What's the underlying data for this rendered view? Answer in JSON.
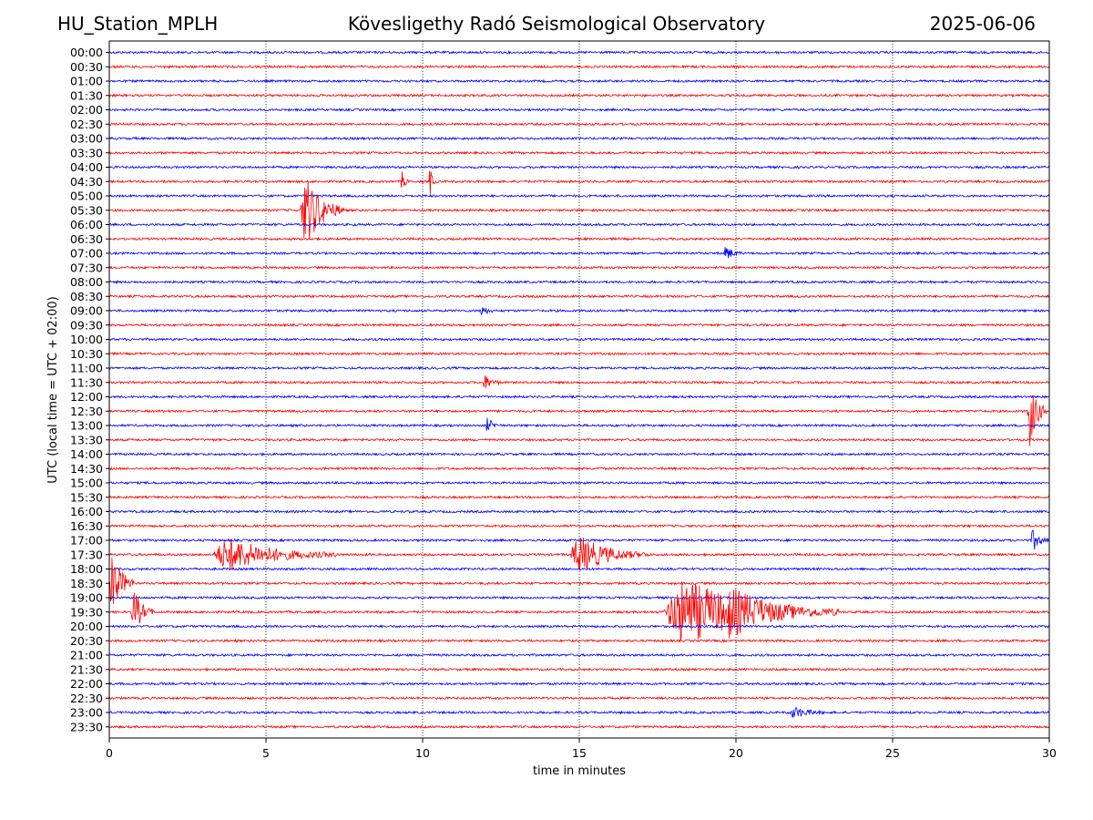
{
  "header": {
    "station": "HU_Station_MPLH",
    "observatory": "Kövesligethy Radó Seismological Observatory",
    "date": "2025-06-06"
  },
  "colors": {
    "even_trace": "#0000ff",
    "odd_trace": "#ff0000",
    "axis": "#000000",
    "grid": "#000000"
  },
  "chart_data": {
    "type": "line",
    "title": "Kövesligethy Radó Seismological Observatory",
    "xlabel": "time in minutes",
    "ylabel": "UTC (local time = UTC + 02:00)",
    "xlim": [
      0,
      30
    ],
    "x_ticks": [
      "0",
      "5",
      "10",
      "15",
      "20",
      "25",
      "30"
    ],
    "x_tick_values": [
      0,
      5,
      10,
      15,
      20,
      25,
      30
    ],
    "grid": "vertical dotted at x ticks",
    "traces": [
      "00:00",
      "00:30",
      "01:00",
      "01:30",
      "02:00",
      "02:30",
      "03:00",
      "03:30",
      "04:00",
      "04:30",
      "05:00",
      "05:30",
      "06:00",
      "06:30",
      "07:00",
      "07:30",
      "08:00",
      "08:30",
      "09:00",
      "09:30",
      "10:00",
      "10:30",
      "11:00",
      "11:30",
      "12:00",
      "12:30",
      "13:00",
      "13:30",
      "14:00",
      "14:30",
      "15:00",
      "15:30",
      "16:00",
      "16:30",
      "17:00",
      "17:30",
      "18:00",
      "18:30",
      "19:00",
      "19:30",
      "20:00",
      "20:30",
      "21:00",
      "21:30",
      "22:00",
      "22:30",
      "23:00",
      "23:30"
    ],
    "events": [
      {
        "trace": "05:30",
        "start_min": 6.1,
        "duration_min": 1.4,
        "amplitude": 1.0
      },
      {
        "trace": "04:30",
        "start_min": 9.3,
        "duration_min": 0.25,
        "amplitude": 0.3
      },
      {
        "trace": "04:30",
        "start_min": 10.2,
        "duration_min": 0.2,
        "amplitude": 0.5
      },
      {
        "trace": "07:00",
        "start_min": 19.6,
        "duration_min": 0.6,
        "amplitude": 0.2
      },
      {
        "trace": "09:00",
        "start_min": 11.8,
        "duration_min": 0.5,
        "amplitude": 0.15
      },
      {
        "trace": "11:30",
        "start_min": 11.9,
        "duration_min": 0.6,
        "amplitude": 0.2
      },
      {
        "trace": "12:30",
        "start_min": 29.3,
        "duration_min": 0.6,
        "amplitude": 1.0
      },
      {
        "trace": "13:00",
        "start_min": 12.0,
        "duration_min": 0.5,
        "amplitude": 0.2
      },
      {
        "trace": "17:00",
        "start_min": 29.4,
        "duration_min": 0.6,
        "amplitude": 0.3
      },
      {
        "trace": "17:30",
        "start_min": 3.3,
        "duration_min": 4.0,
        "amplitude": 0.45
      },
      {
        "trace": "17:30",
        "start_min": 14.7,
        "duration_min": 2.5,
        "amplitude": 0.5
      },
      {
        "trace": "18:30",
        "start_min": 0.0,
        "duration_min": 0.8,
        "amplitude": 0.9
      },
      {
        "trace": "19:30",
        "start_min": 0.7,
        "duration_min": 0.7,
        "amplitude": 0.6
      },
      {
        "trace": "19:30",
        "start_min": 17.7,
        "duration_min": 5.5,
        "amplitude": 0.9
      },
      {
        "trace": "19:30",
        "start_min": 19.3,
        "duration_min": 4.0,
        "amplitude": 0.7
      },
      {
        "trace": "23:00",
        "start_min": 21.7,
        "duration_min": 1.2,
        "amplitude": 0.15
      }
    ]
  }
}
